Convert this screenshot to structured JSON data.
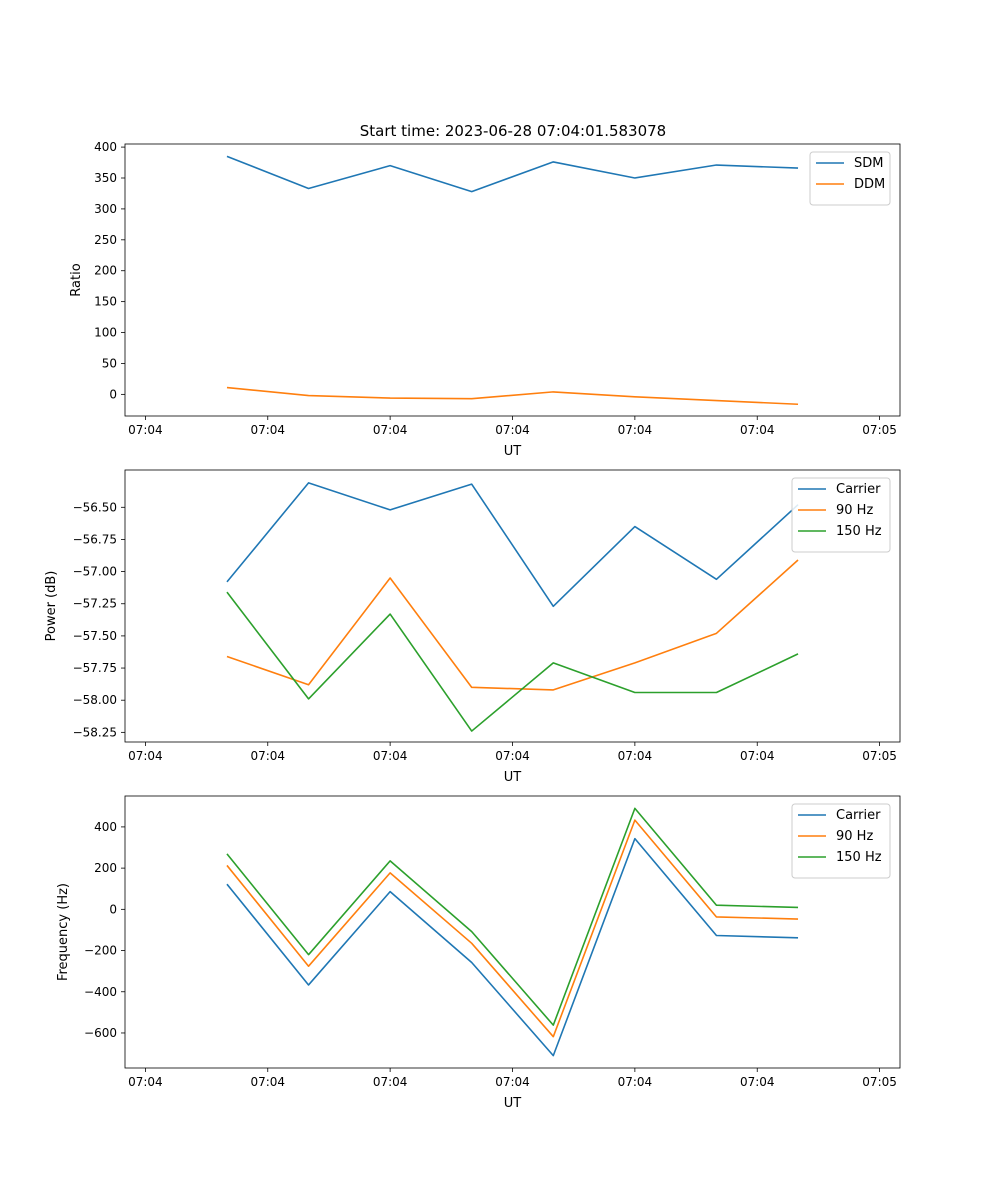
{
  "figure": {
    "title": "Start time: 2023-06-28 07:04:01.583078"
  },
  "chart_data": [
    {
      "type": "line",
      "xlabel": "UT",
      "ylabel": "Ratio",
      "x": [
        0.5,
        1.0,
        1.5,
        2.0,
        2.5,
        3.0,
        3.5,
        4.0
      ],
      "xlim": [
        -0.125,
        4.625
      ],
      "xticks": [
        0,
        0.75,
        1.5,
        2.25,
        3.0,
        3.75,
        4.5
      ],
      "xticklabels": [
        "07:04",
        "07:04",
        "07:04",
        "07:04",
        "07:04",
        "07:04",
        "07:05"
      ],
      "ylim": [
        -35,
        405
      ],
      "yticks": [
        0,
        50,
        100,
        150,
        200,
        250,
        300,
        350,
        400
      ],
      "yticklabels": [
        "0",
        "50",
        "100",
        "150",
        "200",
        "250",
        "300",
        "350",
        "400"
      ],
      "grid": false,
      "legend_position": "upper-right",
      "series": [
        {
          "name": "SDM",
          "color": "#1f77b4",
          "values": [
            385,
            333,
            370,
            328,
            376,
            350,
            371,
            366
          ]
        },
        {
          "name": "DDM",
          "color": "#ff7f0e",
          "values": [
            11,
            -2,
            -6,
            -7,
            4,
            -4,
            -10,
            -16
          ]
        }
      ]
    },
    {
      "type": "line",
      "xlabel": "UT",
      "ylabel": "Power (dB)",
      "x": [
        0.5,
        1.0,
        1.5,
        2.0,
        2.5,
        3.0,
        3.5,
        4.0
      ],
      "xlim": [
        -0.125,
        4.625
      ],
      "xticks": [
        0,
        0.75,
        1.5,
        2.25,
        3.0,
        3.75,
        4.5
      ],
      "xticklabels": [
        "07:04",
        "07:04",
        "07:04",
        "07:04",
        "07:04",
        "07:04",
        "07:05"
      ],
      "ylim": [
        -58.325,
        -56.21
      ],
      "yticks": [
        -56.5,
        -56.75,
        -57.0,
        -57.25,
        -57.5,
        -57.75,
        -58.0,
        -58.25
      ],
      "yticklabels": [
        "−56.50",
        "−56.75",
        "−57.00",
        "−57.25",
        "−57.50",
        "−57.75",
        "−58.00",
        "−58.25"
      ],
      "grid": false,
      "legend_position": "upper-right",
      "series": [
        {
          "name": "Carrier",
          "color": "#1f77b4",
          "values": [
            -57.08,
            -56.31,
            -56.52,
            -56.32,
            -57.27,
            -56.65,
            -57.06,
            -56.48
          ]
        },
        {
          "name": "90 Hz",
          "color": "#ff7f0e",
          "values": [
            -57.66,
            -57.88,
            -57.05,
            -57.9,
            -57.92,
            -57.71,
            -57.48,
            -56.91
          ]
        },
        {
          "name": "150 Hz",
          "color": "#2ca02c",
          "values": [
            -57.16,
            -57.99,
            -57.33,
            -58.24,
            -57.71,
            -57.94,
            -57.94,
            -57.64
          ]
        }
      ]
    },
    {
      "type": "line",
      "xlabel": "UT",
      "ylabel": "Frequency (Hz)",
      "x": [
        0.5,
        1.0,
        1.5,
        2.0,
        2.5,
        3.0,
        3.5,
        4.0
      ],
      "xlim": [
        -0.125,
        4.625
      ],
      "xticks": [
        0,
        0.75,
        1.5,
        2.25,
        3.0,
        3.75,
        4.5
      ],
      "xticklabels": [
        "07:04",
        "07:04",
        "07:04",
        "07:04",
        "07:04",
        "07:04",
        "07:05"
      ],
      "ylim": [
        -770,
        550
      ],
      "yticks": [
        400,
        200,
        0,
        -200,
        -400,
        -600
      ],
      "yticklabels": [
        "400",
        "200",
        "0",
        "−200",
        "−400",
        "−600"
      ],
      "grid": false,
      "legend_position": "upper-right",
      "series": [
        {
          "name": "Carrier",
          "color": "#1f77b4",
          "values": [
            122,
            -367,
            86,
            -258,
            -710,
            343,
            -127,
            -138
          ]
        },
        {
          "name": "90 Hz",
          "color": "#ff7f0e",
          "values": [
            213,
            -276,
            177,
            -165,
            -618,
            433,
            -37,
            -47
          ]
        },
        {
          "name": "150 Hz",
          "color": "#2ca02c",
          "values": [
            269,
            -220,
            235,
            -108,
            -562,
            490,
            20,
            9
          ]
        }
      ]
    }
  ]
}
